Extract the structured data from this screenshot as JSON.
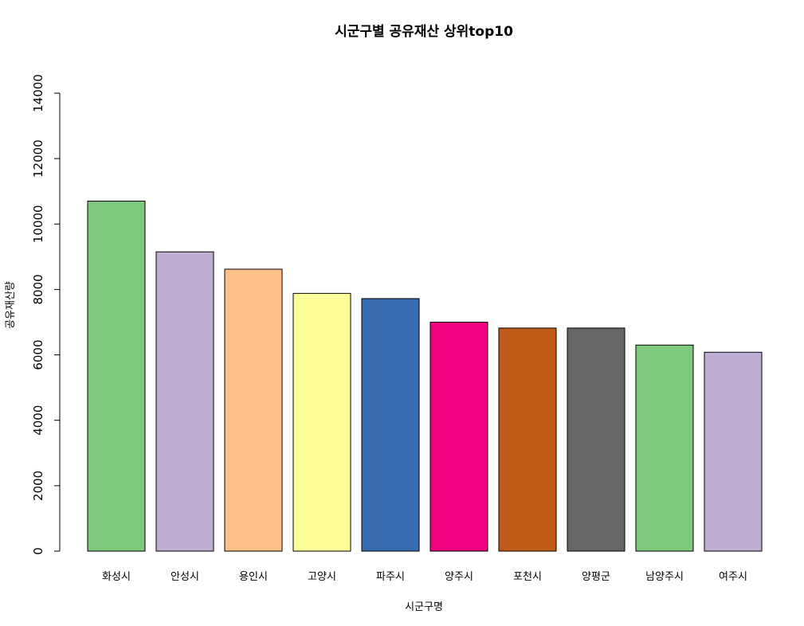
{
  "chart_data": {
    "type": "bar",
    "title": "시군구별 공유재산 상위top10",
    "xlabel": "시군구명",
    "ylabel": "공유재산량",
    "ylim": [
      0,
      14000
    ],
    "yticks": [
      0,
      2000,
      4000,
      6000,
      8000,
      10000,
      12000,
      14000
    ],
    "grid": false,
    "categories": [
      "화성시",
      "안성시",
      "용인시",
      "고양시",
      "파주시",
      "양주시",
      "포천시",
      "양평군",
      "남양주시",
      "여주시"
    ],
    "values": [
      10700,
      9150,
      8620,
      7880,
      7720,
      7000,
      6820,
      6820,
      6300,
      6080
    ],
    "colors": [
      "#7FC97F",
      "#BEAED4",
      "#FDC086",
      "#FFFF99",
      "#386CB0",
      "#F0027F",
      "#BF5B17",
      "#666666",
      "#7FC97F",
      "#BEAED4"
    ]
  }
}
